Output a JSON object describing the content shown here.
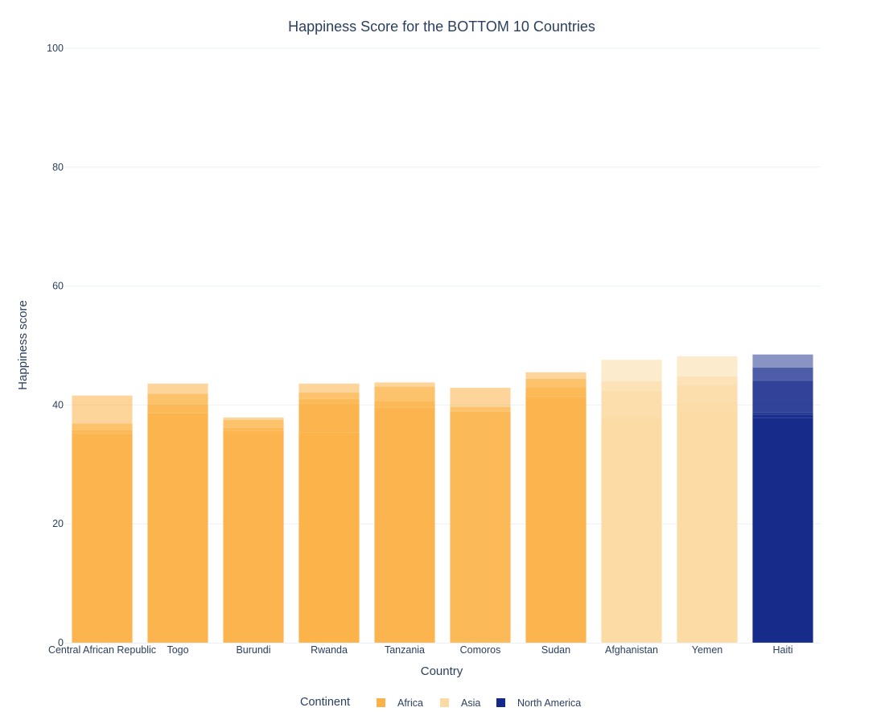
{
  "chart_data": {
    "type": "bar",
    "barmode": "overlay",
    "title": "Happiness Score for the BOTTOM 10 Countries",
    "xlabel": "Country",
    "ylabel": "Happiness score",
    "ylim": [
      0,
      100
    ],
    "yticks": [
      0,
      20,
      40,
      60,
      80,
      100
    ],
    "grid": true,
    "legend_position": "bottom-center",
    "legend_title": "Continent",
    "categories": [
      "Central African Republic",
      "Togo",
      "Burundi",
      "Rwanda",
      "Tanzania",
      "Comoros",
      "Sudan",
      "Afghanistan",
      "Yemen",
      "Haiti"
    ],
    "series": [
      {
        "name": "Africa",
        "color": "#fbb247",
        "countries": [
          "Central African Republic",
          "Togo",
          "Burundi",
          "Rwanda",
          "Tanzania",
          "Comoros",
          "Sudan"
        ]
      },
      {
        "name": "Asia",
        "color": "#fbdaa4",
        "countries": [
          "Afghanistan",
          "Yemen"
        ]
      },
      {
        "name": "North America",
        "color": "#13288a",
        "countries": [
          "Haiti"
        ]
      }
    ],
    "bars": [
      {
        "country": "Central African Republic",
        "continent": "Africa",
        "values": [
          41.6,
          36.9,
          35.8,
          35.2
        ]
      },
      {
        "country": "Togo",
        "continent": "Africa",
        "values": [
          43.6,
          41.9,
          40.1,
          38.6
        ]
      },
      {
        "country": "Burundi",
        "continent": "Africa",
        "values": [
          37.9,
          37.5,
          36.2,
          35.6
        ]
      },
      {
        "country": "Rwanda",
        "continent": "Africa",
        "values": [
          43.6,
          42.1,
          41.0,
          40.3,
          35.4
        ]
      },
      {
        "country": "Tanzania",
        "continent": "Africa",
        "values": [
          43.8,
          43.1,
          40.7,
          39.6
        ]
      },
      {
        "country": "Comoros",
        "continent": "Africa",
        "values": [
          42.9,
          39.7,
          38.9
        ]
      },
      {
        "country": "Sudan",
        "continent": "Africa",
        "values": [
          45.5,
          44.4,
          43.0,
          41.4
        ]
      },
      {
        "country": "Afghanistan",
        "continent": "Asia",
        "values": [
          47.6,
          44.0,
          42.4,
          38.4,
          37.9
        ]
      },
      {
        "country": "Yemen",
        "continent": "Asia",
        "values": [
          48.2,
          44.8,
          43.4,
          40.6,
          39.1
        ]
      },
      {
        "country": "Haiti",
        "continent": "North America",
        "values": [
          48.5,
          46.3,
          44.1,
          38.7,
          38.4,
          37.8
        ]
      }
    ]
  }
}
